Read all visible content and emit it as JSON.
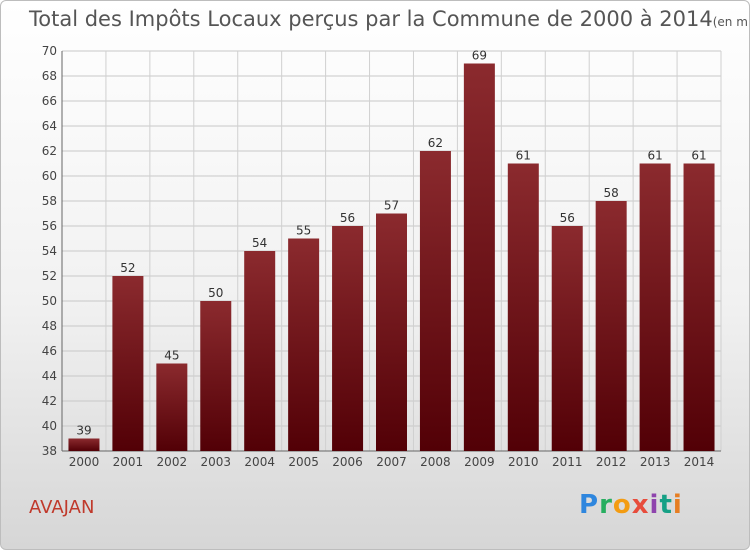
{
  "title": "Total des Impôts Locaux perçus par la Commune de 2000 à 2014",
  "unit": "(en milliers d'€)",
  "commune": "AVAJAN",
  "brand": {
    "letters": [
      "P",
      "r",
      "o",
      "x",
      "i",
      "t",
      "i"
    ],
    "colors": [
      "#2e86de",
      "#27ae60",
      "#f39c12",
      "#e74c3c",
      "#8e44ad",
      "#16a085",
      "#e67e22"
    ]
  },
  "chart_data": {
    "type": "bar",
    "title": "Total des Impôts Locaux perçus par la Commune de 2000 à 2014",
    "xlabel": "",
    "ylabel": "",
    "categories": [
      "2000",
      "2001",
      "2002",
      "2003",
      "2004",
      "2005",
      "2006",
      "2007",
      "2008",
      "2009",
      "2010",
      "2011",
      "2012",
      "2013",
      "2014"
    ],
    "values": [
      39,
      52,
      45,
      50,
      54,
      55,
      56,
      57,
      62,
      69,
      61,
      56,
      58,
      61,
      61
    ],
    "ylim": [
      38,
      70
    ],
    "yticks": [
      38,
      40,
      42,
      44,
      46,
      48,
      50,
      52,
      54,
      56,
      58,
      60,
      62,
      64,
      66,
      68,
      70
    ],
    "grid": true,
    "bar_color": "#7a1a1e"
  }
}
